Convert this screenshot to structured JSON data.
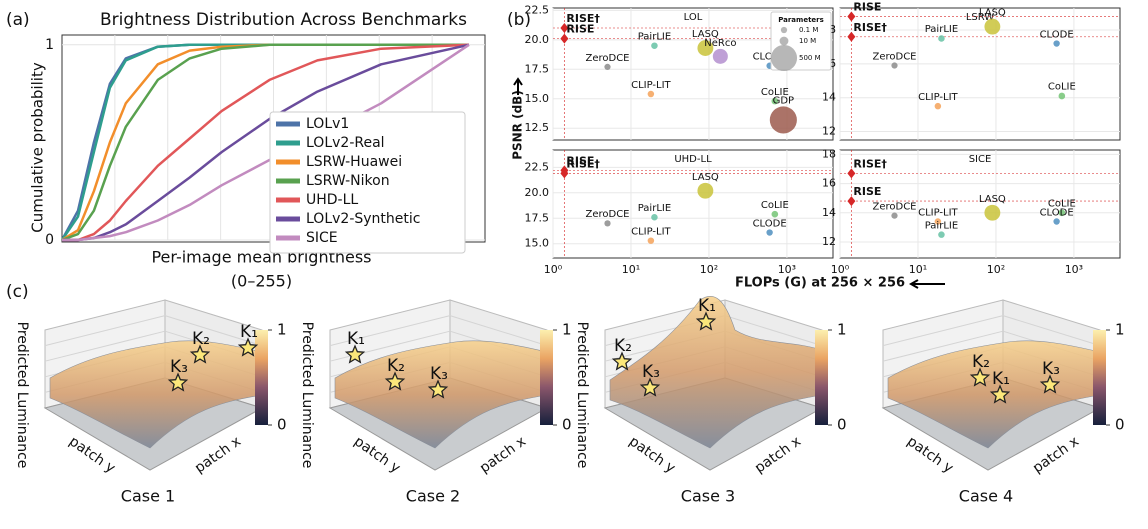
{
  "panel_labels": [
    "(a)",
    "(b)",
    "(c)"
  ],
  "chart_data": [
    {
      "type": "line",
      "title": "Brightness Distribution Across Benchmarks",
      "ylabel": "Cumulative probability",
      "xlabel": [
        "Per-image mean brightness",
        "(0–255)"
      ],
      "x": [
        0,
        10,
        20,
        30,
        40,
        60,
        80,
        100,
        130,
        160,
        200,
        255
      ],
      "xlim": [
        0,
        265
      ],
      "ylim": [
        0,
        1.05
      ],
      "yticks": [
        0,
        1
      ],
      "grid": true,
      "legend": "lower right",
      "series": [
        {
          "name": "LOLv1",
          "color": "#4d73a8",
          "values": [
            0,
            0.15,
            0.5,
            0.8,
            0.93,
            0.99,
            1,
            1,
            1,
            1,
            1,
            1
          ]
        },
        {
          "name": "LOLv2-Real",
          "color": "#2e9e8e",
          "values": [
            0,
            0.12,
            0.45,
            0.78,
            0.92,
            0.99,
            1,
            1,
            1,
            1,
            1,
            1
          ]
        },
        {
          "name": "LSRW-Huawei",
          "color": "#f28e2b",
          "values": [
            0,
            0.05,
            0.25,
            0.5,
            0.7,
            0.9,
            0.97,
            0.99,
            1,
            1,
            1,
            1
          ]
        },
        {
          "name": "LSRW-Nikon",
          "color": "#59a14f",
          "values": [
            0,
            0.03,
            0.15,
            0.38,
            0.58,
            0.82,
            0.93,
            0.98,
            1,
            1,
            1,
            1
          ]
        },
        {
          "name": "UHD-LL",
          "color": "#e15759",
          "values": [
            0,
            0,
            0.03,
            0.1,
            0.2,
            0.38,
            0.52,
            0.66,
            0.82,
            0.92,
            0.98,
            1
          ]
        },
        {
          "name": "LOLv2-Synthetic",
          "color": "#6a4c9c",
          "values": [
            0,
            0,
            0.01,
            0.04,
            0.08,
            0.2,
            0.32,
            0.45,
            0.62,
            0.76,
            0.9,
            1
          ]
        },
        {
          "name": "SICE",
          "color": "#c28bbf",
          "values": [
            0,
            0,
            0.01,
            0.02,
            0.04,
            0.1,
            0.18,
            0.28,
            0.41,
            0.53,
            0.7,
            1
          ]
        }
      ]
    },
    {
      "type": "scatter",
      "title": "LOL",
      "xscale": "log",
      "xlim": [
        1,
        3900
      ],
      "ylim": [
        11.5,
        22.7
      ],
      "xticks": [
        1,
        10,
        100,
        1000
      ],
      "yticks": [
        12.5,
        {
          "value": 15,
          "label": "15.0"
        },
        17.5,
        {
          "value": 20,
          "label": "20.0"
        },
        22.5
      ],
      "series": [
        {
          "name": "RISE†",
          "color": "#d62728",
          "marker": "diamond",
          "x": [
            1.4
          ],
          "values": [
            21.0
          ]
        },
        {
          "name": "RISE",
          "color": "#d62728",
          "marker": "diamond",
          "x": [
            1.4
          ],
          "values": [
            20.1
          ]
        },
        {
          "name": "ZeroDCE",
          "color": "#8c8c8c",
          "x": [
            5
          ],
          "values": [
            17.7
          ],
          "params": [
            0.08
          ]
        },
        {
          "name": "PairLIE",
          "color": "#66c2a5",
          "x": [
            20
          ],
          "values": [
            19.5
          ],
          "params": [
            0.34
          ]
        },
        {
          "name": "LASQ",
          "color": "#c9c33a",
          "x": [
            90
          ],
          "values": [
            19.3
          ],
          "params": [
            120
          ]
        },
        {
          "name": "NeRco",
          "color": "#b48fcf",
          "x": [
            140
          ],
          "values": [
            18.6
          ],
          "params": [
            100
          ]
        },
        {
          "name": "CLODE",
          "color": "#4f8fc0",
          "x": [
            600
          ],
          "values": [
            17.8
          ],
          "params": [
            0.2
          ]
        },
        {
          "name": "CLIP-LIT",
          "color": "#f4a259",
          "x": [
            18
          ],
          "values": [
            15.4
          ],
          "params": [
            0.28
          ]
        },
        {
          "name": "CoLIE",
          "color": "#74c476",
          "x": [
            700
          ],
          "values": [
            14.8
          ],
          "params": [
            0.5
          ]
        },
        {
          "name": "GDP",
          "color": "#9c5b4e",
          "x": [
            900
          ],
          "values": [
            13.2
          ],
          "params": [
            550
          ]
        }
      ]
    },
    {
      "type": "scatter",
      "title": "LSRW",
      "xscale": "log",
      "xlim": [
        1,
        3900
      ],
      "ylim": [
        11.5,
        19.3
      ],
      "xticks": [
        1,
        10,
        100,
        1000
      ],
      "yticks": [
        12,
        14,
        16,
        18
      ],
      "series": [
        {
          "name": "RISE",
          "color": "#d62728",
          "marker": "diamond",
          "x": [
            1.4
          ],
          "values": [
            18.8
          ]
        },
        {
          "name": "RISE†",
          "color": "#d62728",
          "marker": "diamond",
          "x": [
            1.4
          ],
          "values": [
            17.6
          ]
        },
        {
          "name": "LASQ",
          "color": "#c9c33a",
          "x": [
            90
          ],
          "values": [
            18.2
          ],
          "params": [
            120
          ]
        },
        {
          "name": "PairLIE",
          "color": "#66c2a5",
          "x": [
            20
          ],
          "values": [
            17.5
          ],
          "params": [
            0.34
          ]
        },
        {
          "name": "CLODE",
          "color": "#4f8fc0",
          "x": [
            600
          ],
          "values": [
            17.2
          ],
          "params": [
            0.2
          ]
        },
        {
          "name": "ZeroDCE",
          "color": "#8c8c8c",
          "x": [
            5
          ],
          "values": [
            15.9
          ],
          "params": [
            0.08
          ]
        },
        {
          "name": "CLIP-LIT",
          "color": "#f4a259",
          "x": [
            18
          ],
          "values": [
            13.5
          ],
          "params": [
            0.28
          ]
        },
        {
          "name": "CoLIE",
          "color": "#74c476",
          "x": [
            700
          ],
          "values": [
            14.1
          ],
          "params": [
            0.5
          ]
        }
      ]
    },
    {
      "type": "scatter",
      "title": "UHD-LL",
      "xscale": "log",
      "xlim": [
        1,
        3900
      ],
      "ylim": [
        13.6,
        24.2
      ],
      "xticks": [
        {
          "value": 1,
          "label": "10⁰"
        },
        {
          "value": 10,
          "label": "10¹"
        },
        {
          "value": 100,
          "label": "10²"
        },
        {
          "value": 1000,
          "label": "10³"
        }
      ],
      "yticks": [
        {
          "value": 15,
          "label": "15.0"
        },
        17.5,
        {
          "value": 20,
          "label": "20.0"
        },
        22.5
      ],
      "series": [
        {
          "name": "RISE",
          "color": "#d62728",
          "marker": "diamond",
          "x": [
            1.4
          ],
          "values": [
            22.2
          ]
        },
        {
          "name": "RISE†",
          "color": "#d62728",
          "marker": "diamond",
          "x": [
            1.4
          ],
          "values": [
            21.9
          ]
        },
        {
          "name": "LASQ",
          "color": "#c9c33a",
          "x": [
            90
          ],
          "values": [
            20.2
          ],
          "params": [
            120
          ]
        },
        {
          "name": "ZeroDCE",
          "color": "#8c8c8c",
          "x": [
            5
          ],
          "values": [
            17.0
          ],
          "params": [
            0.08
          ]
        },
        {
          "name": "PairLIE",
          "color": "#66c2a5",
          "x": [
            20
          ],
          "values": [
            17.6
          ],
          "params": [
            0.34
          ]
        },
        {
          "name": "CLIP-LIT",
          "color": "#f4a259",
          "x": [
            18
          ],
          "values": [
            15.3
          ],
          "params": [
            0.28
          ]
        },
        {
          "name": "CoLIE",
          "color": "#74c476",
          "x": [
            700
          ],
          "values": [
            17.9
          ],
          "params": [
            0.5
          ]
        },
        {
          "name": "CLODE",
          "color": "#4f8fc0",
          "x": [
            600
          ],
          "values": [
            16.1
          ],
          "params": [
            0.2
          ]
        }
      ]
    },
    {
      "type": "scatter",
      "title": "SICE",
      "xscale": "log",
      "xlim": [
        1,
        3900
      ],
      "ylim": [
        10.9,
        18.3
      ],
      "xticks": [
        {
          "value": 1,
          "label": "10⁰"
        },
        {
          "value": 10,
          "label": "10¹"
        },
        {
          "value": 100,
          "label": "10²"
        },
        {
          "value": 1000,
          "label": "10³"
        }
      ],
      "yticks": [
        12,
        14,
        16,
        18
      ],
      "series": [
        {
          "name": "RISE†",
          "color": "#d62728",
          "marker": "diamond",
          "x": [
            1.4
          ],
          "values": [
            16.7
          ]
        },
        {
          "name": "RISE",
          "color": "#d62728",
          "marker": "diamond",
          "x": [
            1.4
          ],
          "values": [
            14.8
          ]
        },
        {
          "name": "ZeroDCE",
          "color": "#8c8c8c",
          "x": [
            5
          ],
          "values": [
            13.8
          ],
          "params": [
            0.08
          ]
        },
        {
          "name": "LASQ",
          "color": "#c9c33a",
          "x": [
            90
          ],
          "values": [
            14.0
          ],
          "params": [
            120
          ]
        },
        {
          "name": "CoLIE",
          "color": "#74c476",
          "x": [
            700
          ],
          "values": [
            14.0
          ],
          "params": [
            0.5
          ]
        },
        {
          "name": "CLODE",
          "color": "#4f8fc0",
          "x": [
            600
          ],
          "values": [
            13.4
          ],
          "params": [
            0.2
          ]
        },
        {
          "name": "CLIP-LIT",
          "color": "#f4a259",
          "x": [
            18
          ],
          "values": [
            13.4
          ],
          "params": [
            0.28
          ]
        },
        {
          "name": "PairLIE",
          "color": "#66c2a5",
          "x": [
            20
          ],
          "values": [
            12.5
          ],
          "params": [
            0.34
          ]
        }
      ]
    }
  ],
  "panel_b": {
    "ylabel": "PSNR (dB)",
    "xlabel": "FLOPs (G) at 256 × 256",
    "size_legend": {
      "title": "Parameters",
      "entries": [
        {
          "value": 0.1,
          "label": "0.1 M"
        },
        {
          "value": 10,
          "label": "10 M"
        },
        {
          "value": 500,
          "label": "500 M"
        }
      ]
    }
  },
  "panel_c": {
    "cases": [
      {
        "title": "Case 1",
        "zlabel": "Predicted Luminance",
        "xlabel": "patch x",
        "ylabel": "patch y",
        "keys": [
          "K₁",
          "K₂",
          "K₃"
        ],
        "colorbar_ticks": [
          0,
          1
        ]
      },
      {
        "title": "Case 2",
        "zlabel": "Predicted Luminance",
        "xlabel": "patch x",
        "ylabel": "patch y",
        "keys": [
          "K₁",
          "K₂",
          "K₃"
        ],
        "colorbar_ticks": [
          0,
          1
        ]
      },
      {
        "title": "Case 3",
        "zlabel": "Predicted Luminance",
        "xlabel": "patch x",
        "ylabel": "patch y",
        "keys": [
          "K₁",
          "K₂",
          "K₃"
        ],
        "colorbar_ticks": [
          0,
          1
        ]
      },
      {
        "title": "Case 4",
        "xlabel": "patch x",
        "ylabel": "patch y",
        "keys": [
          "K₁",
          "K₂",
          "K₃"
        ],
        "colorbar_ticks": [
          0,
          1
        ]
      }
    ]
  }
}
